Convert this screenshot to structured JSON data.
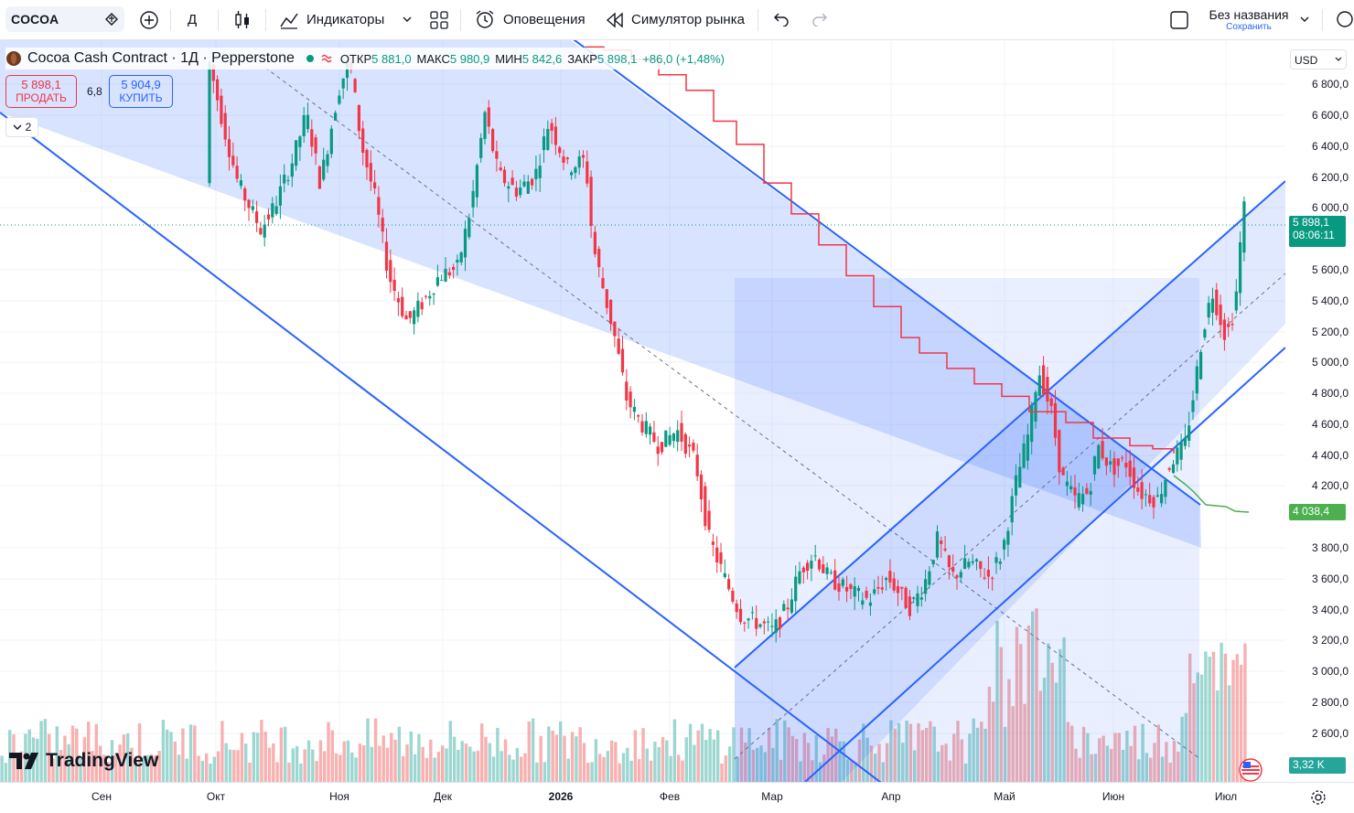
{
  "toolbar": {
    "symbol": "COCOA",
    "interval": "Д",
    "indicators": "Индикаторы",
    "alerts": "Оповещения",
    "replay": "Симулятор рынка",
    "layout_name": "Без названия",
    "save": "Сохранить"
  },
  "legend": {
    "title": "Cocoa Cash Contract · 1Д · Pepperstone",
    "open_label": "ОТКР",
    "open": "5 881,0",
    "high_label": "МАКС",
    "high": "5 980,9",
    "low_label": "МИН",
    "low": "5 842,6",
    "close_label": "ЗАКР",
    "close": "5 898,1",
    "change": "+86,0 (+1,48%)"
  },
  "trade": {
    "sell_price": "5 898,1",
    "sell_label": "ПРОДАТЬ",
    "spread": "6,8",
    "buy_price": "5 904,9",
    "buy_label": "КУПИТЬ"
  },
  "collapse_count": "2",
  "currency": "USD",
  "price_ticks": [
    "6 800,0",
    "6 600,0",
    "6 400,0",
    "6 200,0",
    "6 000,0",
    "5 600,0",
    "5 400,0",
    "5 200,0",
    "5 000,0",
    "4 800,0",
    "4 600,0",
    "4 400,0",
    "4 200,0",
    "3 800,0",
    "3 600,0",
    "3 400,0",
    "3 200,0",
    "3 000,0",
    "2 800,0",
    "2 600,0"
  ],
  "last_price": {
    "value": "5 898,1",
    "countdown": "08:06:11"
  },
  "ma_price": "4 038,4",
  "volume_label": "3,32 K",
  "time_ticks": [
    "Сен",
    "Окт",
    "Ноя",
    "Дек",
    "2026",
    "Фев",
    "Мар",
    "Апр",
    "Май",
    "Июн",
    "Июл"
  ],
  "brand": "TradingView",
  "colors": {
    "up": "#089981",
    "down": "#f23645",
    "channel": "#2962ff",
    "ma_red": "#f23645",
    "ma_green": "#4caf50"
  }
}
